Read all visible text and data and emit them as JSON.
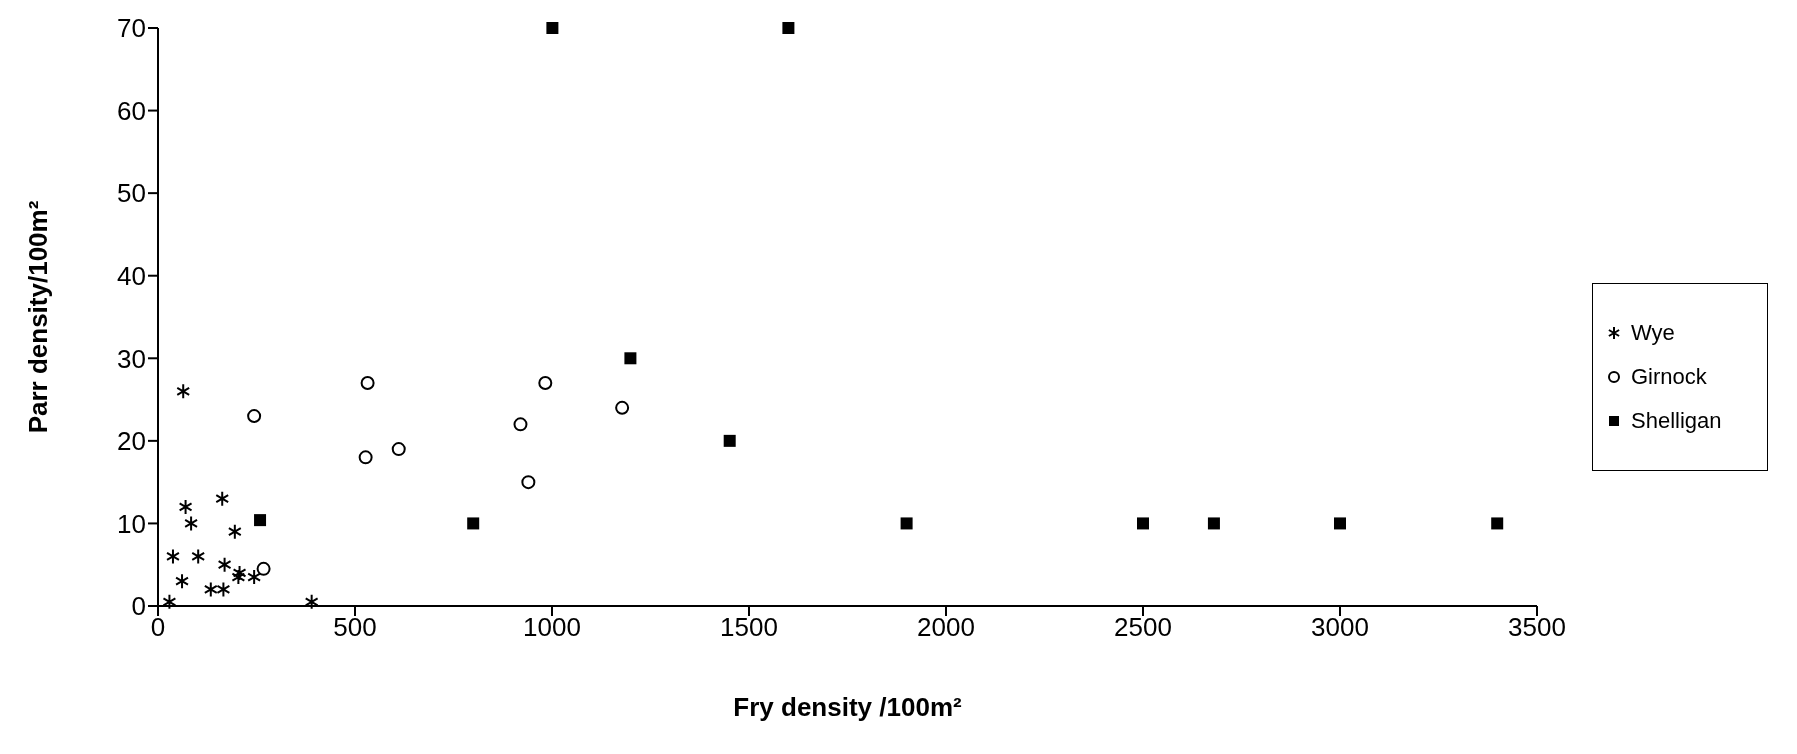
{
  "chart_data": {
    "type": "scatter",
    "xlabel": "Fry density /100m²",
    "ylabel": "Parr density/100m²",
    "xlim": [
      0,
      3500
    ],
    "xticks": [
      0,
      500,
      1000,
      1500,
      2000,
      2500,
      3000,
      3500
    ],
    "ylim": [
      0,
      70
    ],
    "yticks": [
      0,
      10,
      20,
      30,
      40,
      50,
      60,
      70
    ],
    "grid": false,
    "legend": "right",
    "series": [
      {
        "name": "Wye",
        "color": "#000000",
        "marker": "cross",
        "x": [
          29,
          64,
          70,
          84,
          38,
          102,
          61,
          163,
          195,
          169,
          134,
          166,
          207,
          204,
          244,
          390
        ],
        "values": [
          0.5,
          26,
          12,
          10,
          6,
          6,
          3,
          13,
          9,
          5,
          2,
          2,
          4,
          3.5,
          3.5,
          0.5
        ]
      },
      {
        "name": "Girnock",
        "color": "#000000",
        "marker": "circle",
        "x": [
          244,
          268,
          527,
          611,
          532,
          920,
          940,
          983,
          1178
        ],
        "values": [
          23,
          4.5,
          18,
          19,
          27,
          22,
          15,
          27,
          24
        ]
      },
      {
        "name": "Shelligan",
        "color": "#000000",
        "marker": "square",
        "x": [
          259,
          1001,
          1600,
          800,
          1199,
          1451,
          1900,
          2500,
          2680,
          3000,
          3399
        ],
        "values": [
          10.4,
          70,
          70,
          10,
          30,
          20,
          10,
          10,
          10,
          10,
          10
        ]
      }
    ]
  }
}
